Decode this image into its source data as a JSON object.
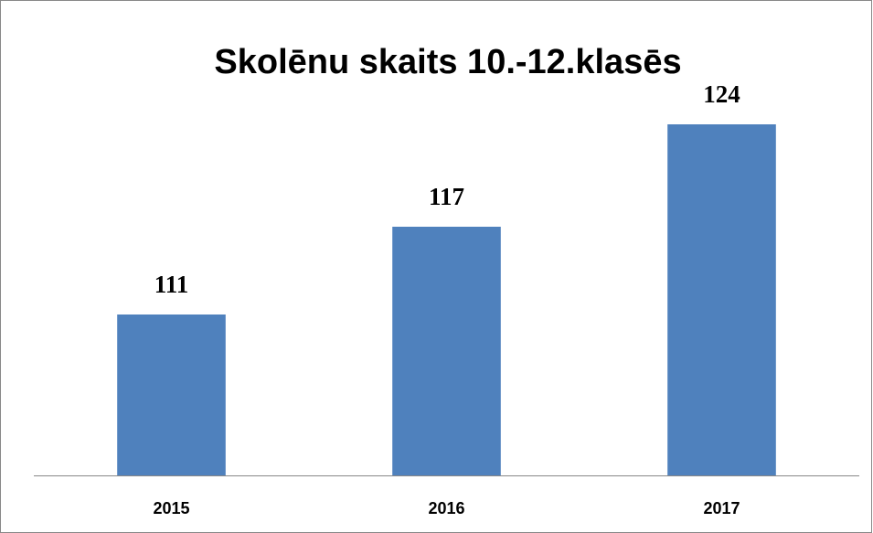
{
  "chart_data": {
    "type": "bar",
    "title": "Skolēnu skaits 10.-12.klasēs",
    "categories": [
      "2015",
      "2016",
      "2017"
    ],
    "values": [
      111,
      117,
      124
    ],
    "color": "#4f81bd",
    "ylim": [
      100,
      128
    ]
  }
}
